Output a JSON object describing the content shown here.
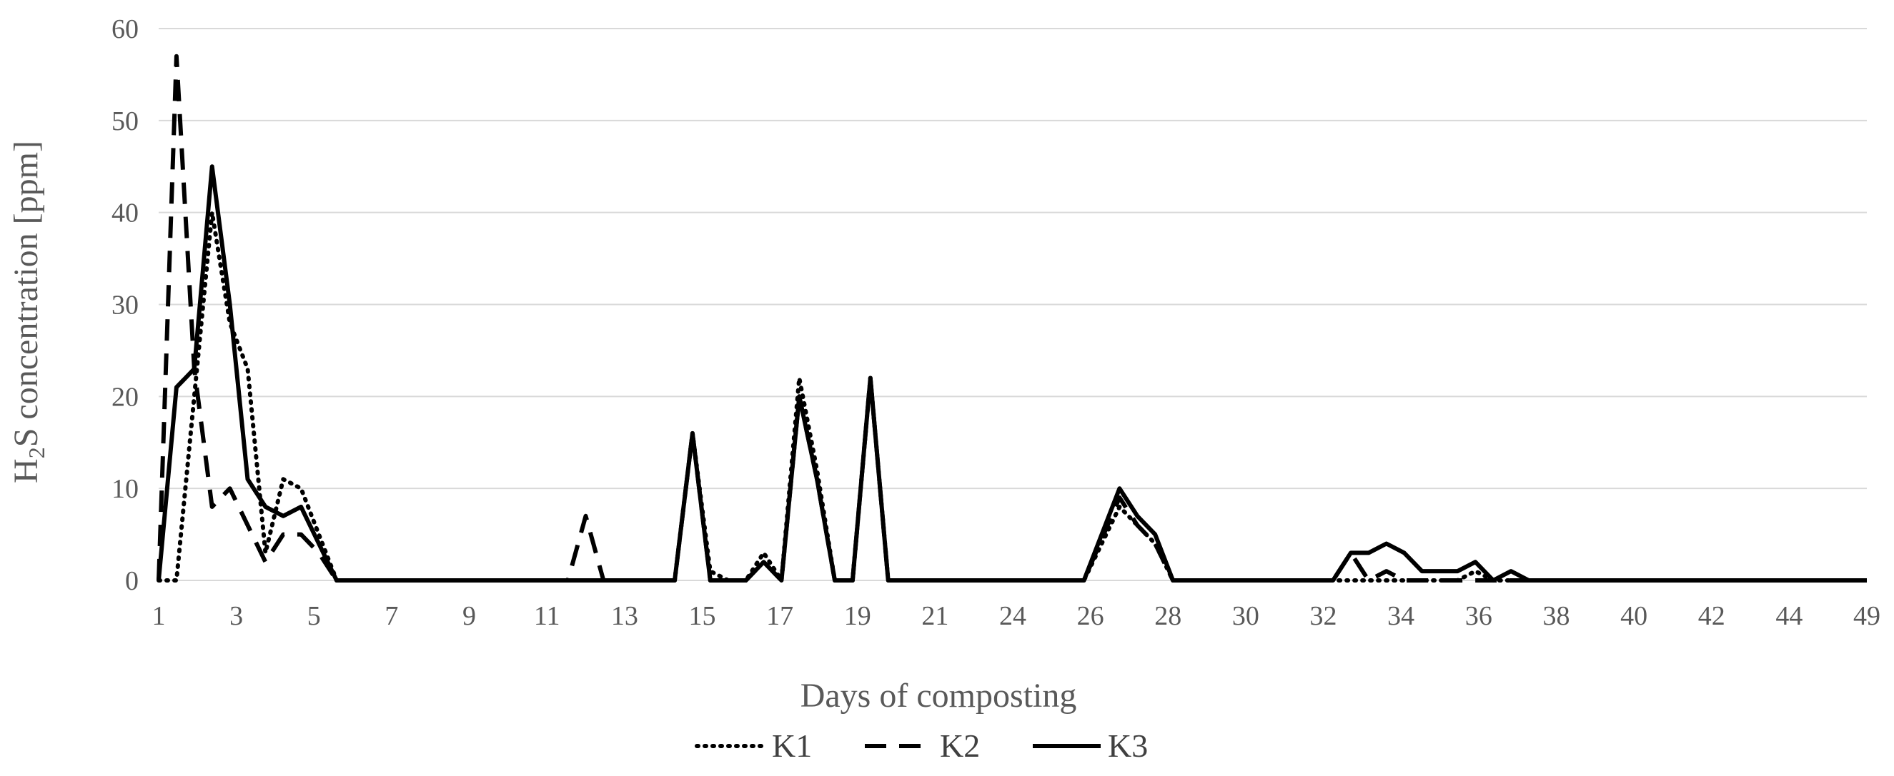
{
  "chart_data": {
    "type": "line",
    "xlabel": "Days of composting",
    "ylabel_parts": [
      "H",
      "2",
      "S concentration [ppm]"
    ],
    "ylim": [
      0,
      60
    ],
    "yticks": [
      0,
      10,
      20,
      30,
      40,
      50,
      60
    ],
    "grid": true,
    "legend_position": "bottom",
    "x_tick_labels": [
      "1",
      "3",
      "5",
      "7",
      "9",
      "11",
      "13",
      "15",
      "17",
      "19",
      "21",
      "24",
      "26",
      "28",
      "30",
      "32",
      "34",
      "36",
      "38",
      "40",
      "42",
      "44",
      "49"
    ],
    "x": [
      1,
      1.5,
      2,
      2.5,
      3,
      3.5,
      4,
      4.5,
      5,
      5.5,
      6,
      6.5,
      7,
      8,
      9,
      10,
      11,
      11.5,
      12,
      12.5,
      13,
      13.5,
      14,
      14.5,
      15,
      15.5,
      16,
      16.5,
      17,
      17.5,
      18,
      18.5,
      19,
      19.5,
      20,
      20.5,
      21,
      21.5,
      22,
      23,
      24,
      25,
      26,
      27,
      28,
      28.5,
      29,
      29.5,
      30,
      31,
      32,
      33,
      34,
      34.5,
      35,
      35.5,
      36,
      36.5,
      37,
      37.5,
      38,
      38.5,
      39,
      39.5,
      40,
      42,
      44,
      49
    ],
    "series": [
      {
        "name": "K1",
        "dash": "dotted",
        "values": [
          0,
          0,
          20,
          40,
          28,
          23,
          3,
          11,
          10,
          5,
          0,
          0,
          0,
          0,
          0,
          0,
          0,
          0,
          0,
          0,
          0,
          0,
          0,
          0,
          0,
          0,
          16,
          1,
          0,
          0,
          3,
          0,
          22,
          12,
          0,
          0,
          22,
          0,
          0,
          0,
          0,
          0,
          0,
          0,
          8,
          6,
          4,
          0,
          0,
          0,
          0,
          0,
          0,
          0,
          0,
          0,
          0,
          0,
          0,
          0,
          1,
          0,
          0,
          0,
          0,
          0,
          0,
          0
        ]
      },
      {
        "name": "K2",
        "dash": "dashed",
        "values": [
          0,
          57,
          23,
          8,
          10,
          6,
          2,
          5,
          5,
          3,
          0,
          0,
          0,
          0,
          0,
          0,
          0,
          0,
          0,
          0,
          7,
          0,
          0,
          0,
          0,
          0,
          16,
          0,
          0,
          0,
          2,
          0,
          20,
          11,
          0,
          0,
          22,
          0,
          0,
          0,
          0,
          0,
          0,
          0,
          9,
          6,
          4,
          0,
          0,
          0,
          0,
          0,
          0,
          3,
          0,
          1,
          0,
          0,
          0,
          0,
          0,
          0,
          0,
          0,
          0,
          0,
          0,
          0
        ]
      },
      {
        "name": "K3",
        "dash": "solid",
        "values": [
          0,
          21,
          23,
          45,
          30,
          11,
          8,
          7,
          8,
          4,
          0,
          0,
          0,
          0,
          0,
          0,
          0,
          0,
          0,
          0,
          0,
          0,
          0,
          0,
          0,
          0,
          16,
          0,
          0,
          0,
          2,
          0,
          20,
          11,
          0,
          0,
          22,
          0,
          0,
          0,
          0,
          0,
          0,
          0,
          10,
          7,
          5,
          0,
          0,
          0,
          0,
          0,
          0,
          3,
          3,
          4,
          3,
          1,
          1,
          1,
          2,
          0,
          1,
          0,
          0,
          0,
          0,
          0
        ]
      }
    ]
  }
}
